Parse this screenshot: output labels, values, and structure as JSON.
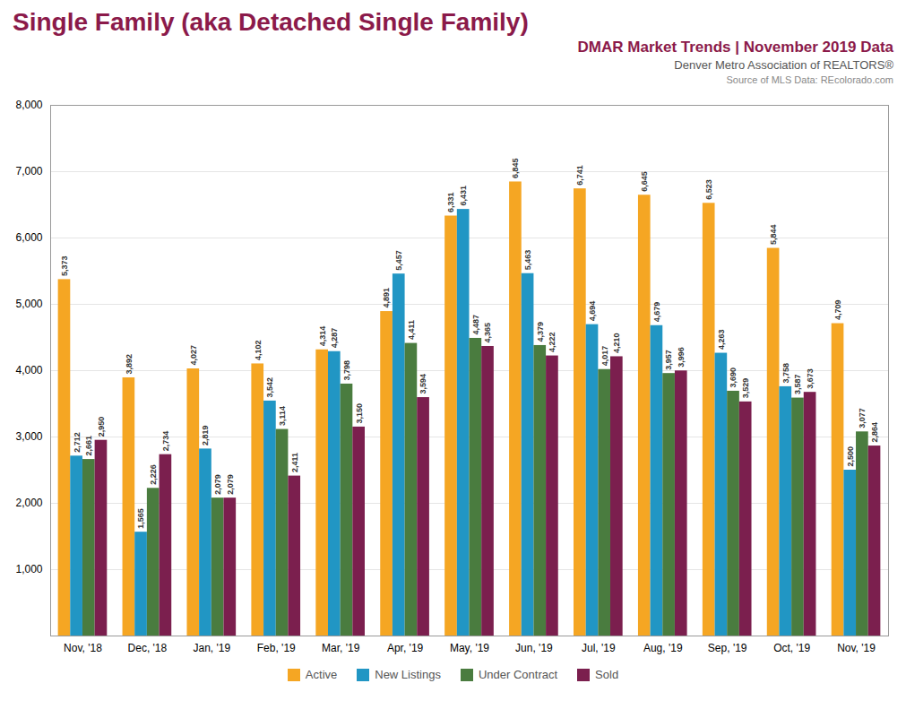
{
  "chart_data": {
    "type": "bar",
    "title": "Single Family (aka Detached Single Family)",
    "subtitle": "DMAR Market Trends | November 2019 Data",
    "annotations": [
      "Denver Metro Association of REALTORS®",
      "Source of MLS Data: REcolorado.com"
    ],
    "categories": [
      "Nov, '18",
      "Dec, '18",
      "Jan, '19",
      "Feb, '19",
      "Mar, '19",
      "Apr, '19",
      "May, '19",
      "Jun, '19",
      "Jul, '19",
      "Aug, '19",
      "Sep, '19",
      "Oct, '19",
      "Nov, '19"
    ],
    "series": [
      {
        "name": "Active",
        "color": "#F5A623",
        "values": [
          5373,
          3892,
          4027,
          4102,
          4314,
          4891,
          6331,
          6845,
          6741,
          6645,
          6523,
          5844,
          4709
        ],
        "value_labels": [
          "5,373",
          "3,892",
          "4,027",
          "4,102",
          "4,314",
          "4,891",
          "6,331",
          "6,845",
          "6,741",
          "6,645",
          "6,523",
          "5,844",
          "4,709"
        ]
      },
      {
        "name": "New Listings",
        "color": "#2196C4",
        "values": [
          2712,
          1565,
          2819,
          3542,
          4287,
          5457,
          6431,
          5463,
          4694,
          4679,
          4263,
          3758,
          2500
        ],
        "value_labels": [
          "2,712",
          "1,565",
          "2,819",
          "3,542",
          "4,287",
          "5,457",
          "6,431",
          "5,463",
          "4,694",
          "4,679",
          "4,263",
          "3,758",
          "2,500"
        ]
      },
      {
        "name": "Under Contract",
        "color": "#4A7C3F",
        "values": [
          2661,
          2226,
          2079,
          3114,
          3798,
          4411,
          4487,
          4379,
          4017,
          3957,
          3690,
          3587,
          3077
        ],
        "value_labels": [
          "2,661",
          "2,226",
          "2,079",
          "3,114",
          "3,798",
          "4,411",
          "4,487",
          "4,379",
          "4,017",
          "3,957",
          "3,690",
          "3,587",
          "3,077"
        ]
      },
      {
        "name": "Sold",
        "color": "#7B1F4E",
        "values": [
          2950,
          2734,
          2079,
          2411,
          3150,
          3594,
          4365,
          4222,
          4210,
          3996,
          3529,
          3673,
          2864
        ],
        "value_labels": [
          "2,950",
          "2,734",
          "2,079",
          "2,411",
          "3,150",
          "3,594",
          "4,365",
          "4,222",
          "4,210",
          "3,996",
          "3,529",
          "3,673",
          "2,864"
        ]
      }
    ],
    "ylim": [
      0,
      8000
    ],
    "yticks": [
      {
        "value": 1000,
        "label": "1,000"
      },
      {
        "value": 2000,
        "label": "2,000"
      },
      {
        "value": 3000,
        "label": "3,000"
      },
      {
        "value": 4000,
        "label": "4,000"
      },
      {
        "value": 5000,
        "label": "5,000"
      },
      {
        "value": 6000,
        "label": "6,000"
      },
      {
        "value": 7000,
        "label": "7,000"
      },
      {
        "value": 8000,
        "label": "8,000"
      }
    ],
    "grid": true,
    "legend": "bottom",
    "data_labels": true
  }
}
